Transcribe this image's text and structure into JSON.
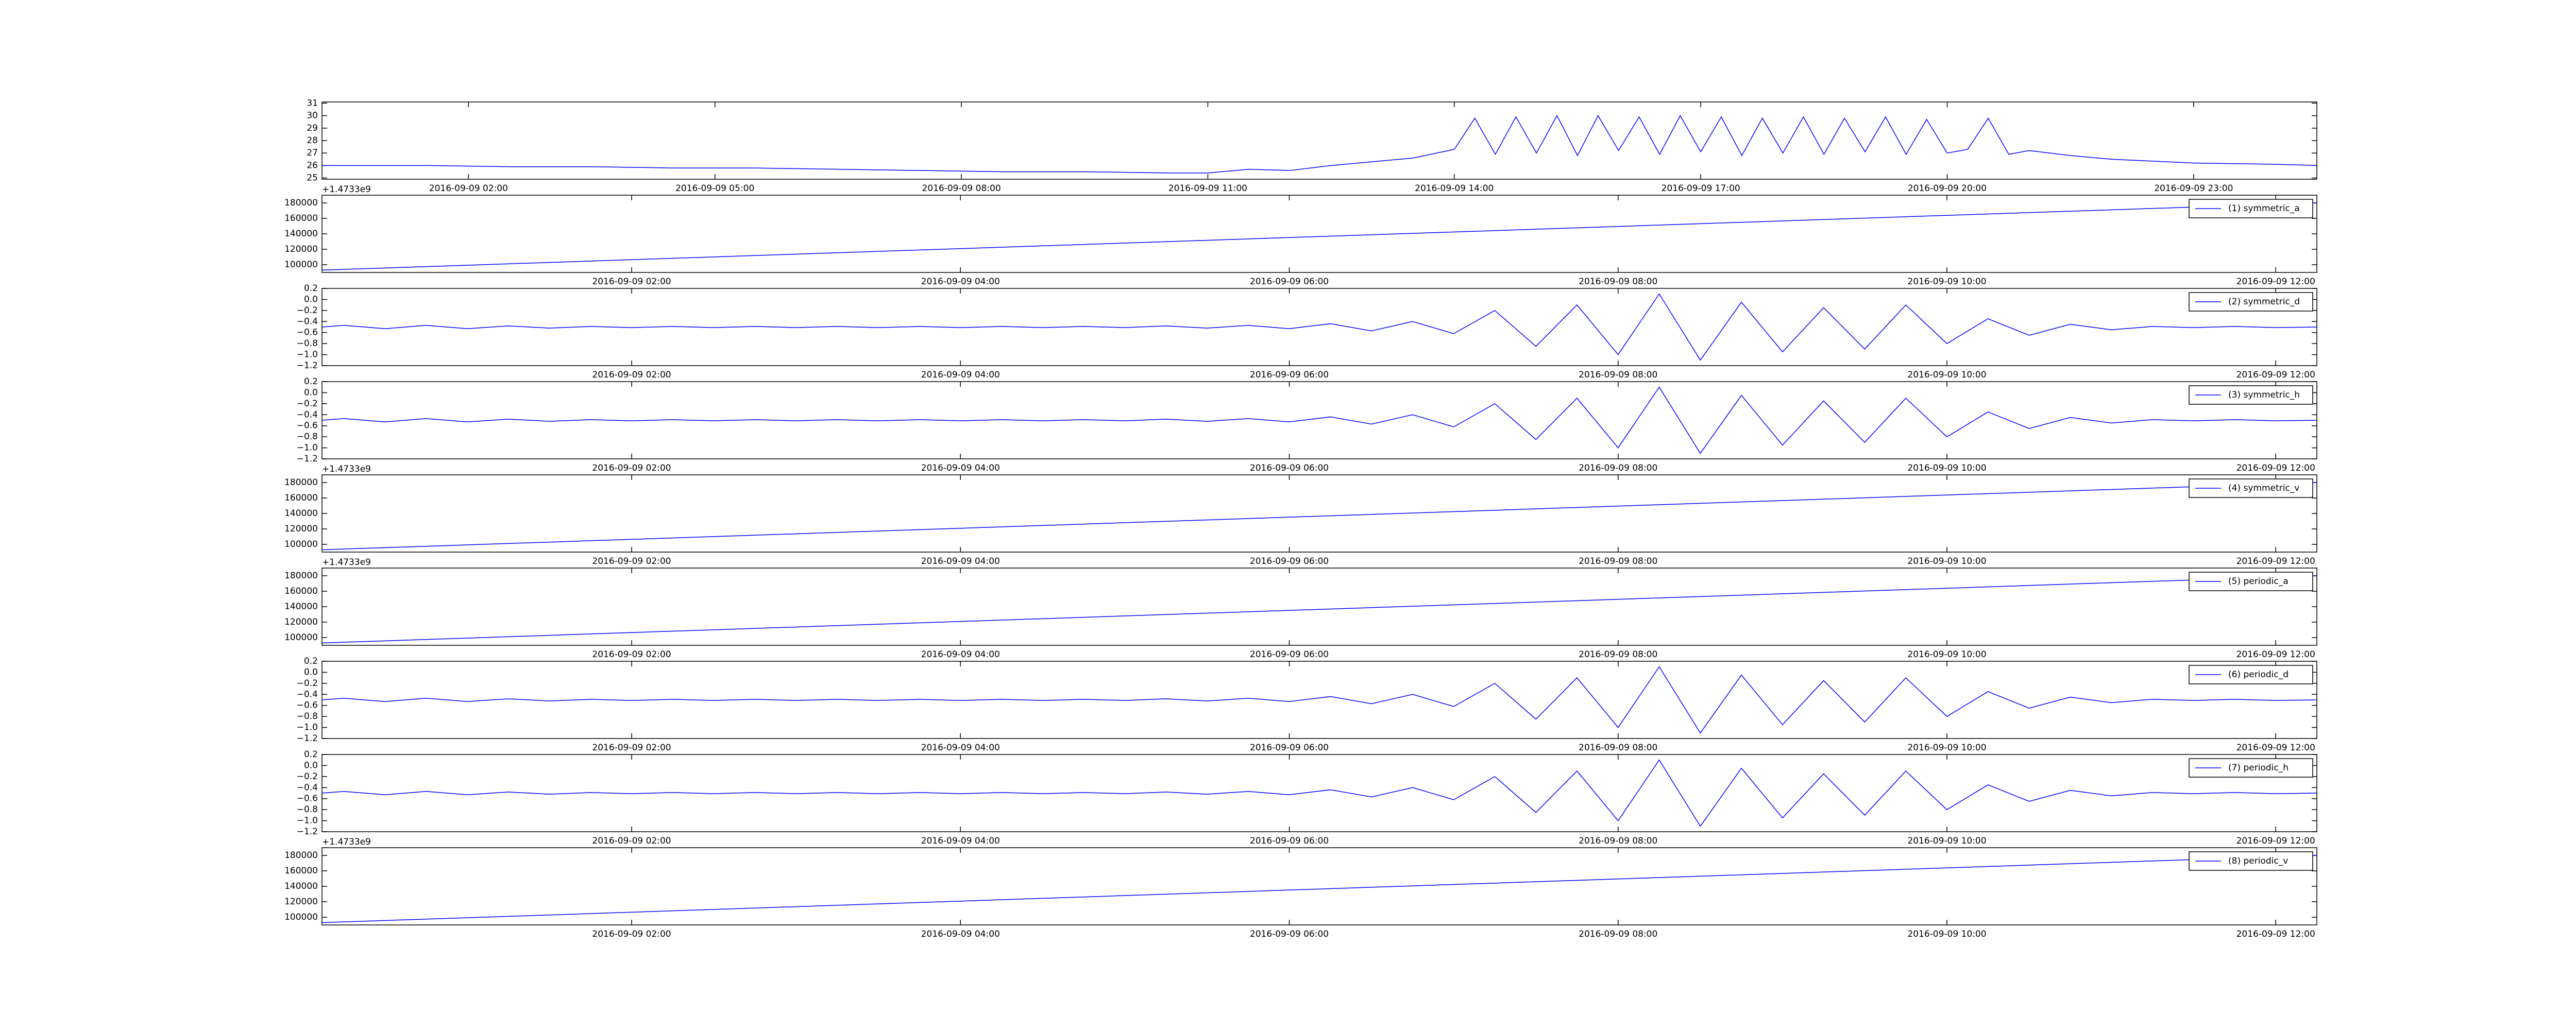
{
  "chart_data": [
    {
      "type": "line",
      "color": "#0000ff",
      "x": [
        "2016-09-09 00:13",
        "2016-09-09 01:30",
        "2016-09-09 02:30",
        "2016-09-09 03:30",
        "2016-09-09 04:30",
        "2016-09-09 05:30",
        "2016-09-09 06:30",
        "2016-09-09 07:30",
        "2016-09-09 08:30",
        "2016-09-09 09:30",
        "2016-09-09 10:30",
        "2016-09-09 11:00",
        "2016-09-09 11:30",
        "2016-09-09 12:00",
        "2016-09-09 12:30",
        "2016-09-09 13:00",
        "2016-09-09 13:30",
        "2016-09-09 14:00",
        "2016-09-09 14:15",
        "2016-09-09 14:30",
        "2016-09-09 14:45",
        "2016-09-09 15:00",
        "2016-09-09 15:15",
        "2016-09-09 15:30",
        "2016-09-09 15:45",
        "2016-09-09 16:00",
        "2016-09-09 16:15",
        "2016-09-09 16:30",
        "2016-09-09 16:45",
        "2016-09-09 17:00",
        "2016-09-09 17:15",
        "2016-09-09 17:30",
        "2016-09-09 17:45",
        "2016-09-09 18:00",
        "2016-09-09 18:15",
        "2016-09-09 18:30",
        "2016-09-09 18:45",
        "2016-09-09 19:00",
        "2016-09-09 19:15",
        "2016-09-09 19:30",
        "2016-09-09 19:45",
        "2016-09-09 20:00",
        "2016-09-09 20:15",
        "2016-09-09 20:30",
        "2016-09-09 20:45",
        "2016-09-09 21:00",
        "2016-09-09 21:30",
        "2016-09-09 22:00",
        "2016-09-09 23:00",
        "2016-09-10 00:00",
        "2016-09-10 00:30"
      ],
      "values": [
        26.0,
        26.0,
        25.9,
        25.9,
        25.8,
        25.8,
        25.7,
        25.6,
        25.5,
        25.5,
        25.4,
        25.4,
        25.7,
        25.6,
        26.0,
        26.3,
        26.6,
        27.3,
        29.8,
        26.9,
        29.9,
        27.0,
        30.0,
        26.8,
        30.0,
        27.2,
        29.9,
        26.9,
        30.0,
        27.1,
        29.9,
        26.8,
        29.8,
        27.0,
        29.9,
        26.9,
        29.8,
        27.1,
        29.9,
        26.9,
        29.7,
        27.0,
        27.3,
        29.8,
        26.9,
        27.2,
        26.8,
        26.5,
        26.2,
        26.1,
        26.0
      ],
      "xlim": [
        "2016-09-09 00:13",
        "2016-09-10 00:30"
      ],
      "xticks": [
        "2016-09-09 02:00",
        "2016-09-09 05:00",
        "2016-09-09 08:00",
        "2016-09-09 11:00",
        "2016-09-09 14:00",
        "2016-09-09 17:00",
        "2016-09-09 20:00",
        "2016-09-09 23:00"
      ],
      "ylim": [
        24.9,
        31.1
      ],
      "yticks": [
        25,
        26,
        27,
        28,
        29,
        30,
        31
      ]
    },
    {
      "type": "line",
      "y_offset_text": "+1.4733e9",
      "legend": "upper right",
      "x": [
        "2016-09-09 00:07",
        "2016-09-09 12:15"
      ],
      "series": [
        {
          "name": "(1) symmetric_a",
          "color": "#0000ff",
          "values": [
            93000,
            180000
          ]
        }
      ],
      "xlim": [
        "2016-09-09 00:07",
        "2016-09-09 12:15"
      ],
      "xticks": [
        "2016-09-09 02:00",
        "2016-09-09 04:00",
        "2016-09-09 06:00",
        "2016-09-09 08:00",
        "2016-09-09 10:00",
        "2016-09-09 12:00"
      ],
      "ylim": [
        90000,
        190000
      ],
      "yticks": [
        100000,
        120000,
        140000,
        160000,
        180000
      ]
    },
    {
      "type": "line",
      "legend": "upper right",
      "x": [
        "2016-09-09 00:07",
        "2016-09-09 00:15",
        "2016-09-09 00:30",
        "2016-09-09 00:45",
        "2016-09-09 01:00",
        "2016-09-09 01:15",
        "2016-09-09 01:30",
        "2016-09-09 01:45",
        "2016-09-09 02:00",
        "2016-09-09 02:15",
        "2016-09-09 02:30",
        "2016-09-09 02:45",
        "2016-09-09 03:00",
        "2016-09-09 03:15",
        "2016-09-09 03:30",
        "2016-09-09 03:45",
        "2016-09-09 04:00",
        "2016-09-09 04:15",
        "2016-09-09 04:30",
        "2016-09-09 04:45",
        "2016-09-09 05:00",
        "2016-09-09 05:15",
        "2016-09-09 05:30",
        "2016-09-09 05:45",
        "2016-09-09 06:00",
        "2016-09-09 06:15",
        "2016-09-09 06:30",
        "2016-09-09 06:45",
        "2016-09-09 07:00",
        "2016-09-09 07:15",
        "2016-09-09 07:30",
        "2016-09-09 07:45",
        "2016-09-09 08:00",
        "2016-09-09 08:15",
        "2016-09-09 08:30",
        "2016-09-09 08:45",
        "2016-09-09 09:00",
        "2016-09-09 09:15",
        "2016-09-09 09:30",
        "2016-09-09 09:45",
        "2016-09-09 10:00",
        "2016-09-09 10:15",
        "2016-09-09 10:30",
        "2016-09-09 10:45",
        "2016-09-09 11:00",
        "2016-09-09 11:15",
        "2016-09-09 11:30",
        "2016-09-09 11:45",
        "2016-09-09 12:00",
        "2016-09-09 12:15"
      ],
      "series": [
        {
          "name": "(2) symmetric_d",
          "color": "#0000ff",
          "values": [
            -0.5,
            -0.47,
            -0.53,
            -0.47,
            -0.53,
            -0.48,
            -0.52,
            -0.49,
            -0.51,
            -0.49,
            -0.51,
            -0.49,
            -0.51,
            -0.49,
            -0.51,
            -0.49,
            -0.51,
            -0.49,
            -0.51,
            -0.49,
            -0.51,
            -0.48,
            -0.52,
            -0.47,
            -0.53,
            -0.44,
            -0.57,
            -0.4,
            -0.62,
            -0.2,
            -0.85,
            -0.1,
            -1.0,
            0.1,
            -1.1,
            -0.05,
            -0.95,
            -0.15,
            -0.9,
            -0.1,
            -0.8,
            -0.35,
            -0.65,
            -0.45,
            -0.55,
            -0.49,
            -0.51,
            -0.49,
            -0.51,
            -0.5
          ]
        }
      ],
      "xlim": [
        "2016-09-09 00:07",
        "2016-09-09 12:15"
      ],
      "xticks": [
        "2016-09-09 02:00",
        "2016-09-09 04:00",
        "2016-09-09 06:00",
        "2016-09-09 08:00",
        "2016-09-09 10:00",
        "2016-09-09 12:00"
      ],
      "ylim": [
        -1.2,
        0.2
      ],
      "yticks": [
        {
          "value": -1.2,
          "label": "−1.2"
        },
        {
          "value": -1.0,
          "label": "−1.0"
        },
        {
          "value": -0.8,
          "label": "−0.8"
        },
        {
          "value": -0.6,
          "label": "−0.6"
        },
        {
          "value": -0.4,
          "label": "−0.4"
        },
        {
          "value": -0.2,
          "label": "−0.2"
        },
        {
          "value": 0,
          "label": "0.0"
        },
        0.2
      ]
    },
    {
      "type": "line",
      "legend": "upper right",
      "x": [
        "2016-09-09 00:07",
        "2016-09-09 00:15",
        "2016-09-09 00:30",
        "2016-09-09 00:45",
        "2016-09-09 01:00",
        "2016-09-09 01:15",
        "2016-09-09 01:30",
        "2016-09-09 01:45",
        "2016-09-09 02:00",
        "2016-09-09 02:15",
        "2016-09-09 02:30",
        "2016-09-09 02:45",
        "2016-09-09 03:00",
        "2016-09-09 03:15",
        "2016-09-09 03:30",
        "2016-09-09 03:45",
        "2016-09-09 04:00",
        "2016-09-09 04:15",
        "2016-09-09 04:30",
        "2016-09-09 04:45",
        "2016-09-09 05:00",
        "2016-09-09 05:15",
        "2016-09-09 05:30",
        "2016-09-09 05:45",
        "2016-09-09 06:00",
        "2016-09-09 06:15",
        "2016-09-09 06:30",
        "2016-09-09 06:45",
        "2016-09-09 07:00",
        "2016-09-09 07:15",
        "2016-09-09 07:30",
        "2016-09-09 07:45",
        "2016-09-09 08:00",
        "2016-09-09 08:15",
        "2016-09-09 08:30",
        "2016-09-09 08:45",
        "2016-09-09 09:00",
        "2016-09-09 09:15",
        "2016-09-09 09:30",
        "2016-09-09 09:45",
        "2016-09-09 10:00",
        "2016-09-09 10:15",
        "2016-09-09 10:30",
        "2016-09-09 10:45",
        "2016-09-09 11:00",
        "2016-09-09 11:15",
        "2016-09-09 11:30",
        "2016-09-09 11:45",
        "2016-09-09 12:00",
        "2016-09-09 12:15"
      ],
      "series": [
        {
          "name": "(3) symmetric_h",
          "color": "#0000ff",
          "values": [
            -0.5,
            -0.47,
            -0.53,
            -0.47,
            -0.53,
            -0.48,
            -0.52,
            -0.49,
            -0.51,
            -0.49,
            -0.51,
            -0.49,
            -0.51,
            -0.49,
            -0.51,
            -0.49,
            -0.51,
            -0.49,
            -0.51,
            -0.49,
            -0.51,
            -0.48,
            -0.52,
            -0.47,
            -0.53,
            -0.44,
            -0.57,
            -0.4,
            -0.62,
            -0.2,
            -0.85,
            -0.1,
            -1.0,
            0.1,
            -1.1,
            -0.05,
            -0.95,
            -0.15,
            -0.9,
            -0.1,
            -0.8,
            -0.35,
            -0.65,
            -0.45,
            -0.55,
            -0.49,
            -0.51,
            -0.49,
            -0.51,
            -0.5
          ]
        }
      ],
      "xlim": [
        "2016-09-09 00:07",
        "2016-09-09 12:15"
      ],
      "xticks": [
        "2016-09-09 02:00",
        "2016-09-09 04:00",
        "2016-09-09 06:00",
        "2016-09-09 08:00",
        "2016-09-09 10:00",
        "2016-09-09 12:00"
      ],
      "ylim": [
        -1.2,
        0.2
      ],
      "yticks": [
        {
          "value": -1.2,
          "label": "−1.2"
        },
        {
          "value": -1.0,
          "label": "−1.0"
        },
        {
          "value": -0.8,
          "label": "−0.8"
        },
        {
          "value": -0.6,
          "label": "−0.6"
        },
        {
          "value": -0.4,
          "label": "−0.4"
        },
        {
          "value": -0.2,
          "label": "−0.2"
        },
        {
          "value": 0,
          "label": "0.0"
        },
        0.2
      ]
    },
    {
      "type": "line",
      "y_offset_text": "+1.4733e9",
      "legend": "upper right",
      "x": [
        "2016-09-09 00:07",
        "2016-09-09 12:15"
      ],
      "series": [
        {
          "name": "(4) symmetric_v",
          "color": "#0000ff",
          "values": [
            93000,
            180000
          ]
        }
      ],
      "xlim": [
        "2016-09-09 00:07",
        "2016-09-09 12:15"
      ],
      "xticks": [
        "2016-09-09 02:00",
        "2016-09-09 04:00",
        "2016-09-09 06:00",
        "2016-09-09 08:00",
        "2016-09-09 10:00",
        "2016-09-09 12:00"
      ],
      "ylim": [
        90000,
        190000
      ],
      "yticks": [
        100000,
        120000,
        140000,
        160000,
        180000
      ]
    },
    {
      "type": "line",
      "y_offset_text": "+1.4733e9",
      "legend": "upper right",
      "x": [
        "2016-09-09 00:07",
        "2016-09-09 12:15"
      ],
      "series": [
        {
          "name": "(5) periodic_a",
          "color": "#0000ff",
          "values": [
            93000,
            180000
          ]
        }
      ],
      "xlim": [
        "2016-09-09 00:07",
        "2016-09-09 12:15"
      ],
      "xticks": [
        "2016-09-09 02:00",
        "2016-09-09 04:00",
        "2016-09-09 06:00",
        "2016-09-09 08:00",
        "2016-09-09 10:00",
        "2016-09-09 12:00"
      ],
      "ylim": [
        90000,
        190000
      ],
      "yticks": [
        100000,
        120000,
        140000,
        160000,
        180000
      ]
    },
    {
      "type": "line",
      "legend": "upper right",
      "x": [
        "2016-09-09 00:07",
        "2016-09-09 00:15",
        "2016-09-09 00:30",
        "2016-09-09 00:45",
        "2016-09-09 01:00",
        "2016-09-09 01:15",
        "2016-09-09 01:30",
        "2016-09-09 01:45",
        "2016-09-09 02:00",
        "2016-09-09 02:15",
        "2016-09-09 02:30",
        "2016-09-09 02:45",
        "2016-09-09 03:00",
        "2016-09-09 03:15",
        "2016-09-09 03:30",
        "2016-09-09 03:45",
        "2016-09-09 04:00",
        "2016-09-09 04:15",
        "2016-09-09 04:30",
        "2016-09-09 04:45",
        "2016-09-09 05:00",
        "2016-09-09 05:15",
        "2016-09-09 05:30",
        "2016-09-09 05:45",
        "2016-09-09 06:00",
        "2016-09-09 06:15",
        "2016-09-09 06:30",
        "2016-09-09 06:45",
        "2016-09-09 07:00",
        "2016-09-09 07:15",
        "2016-09-09 07:30",
        "2016-09-09 07:45",
        "2016-09-09 08:00",
        "2016-09-09 08:15",
        "2016-09-09 08:30",
        "2016-09-09 08:45",
        "2016-09-09 09:00",
        "2016-09-09 09:15",
        "2016-09-09 09:30",
        "2016-09-09 09:45",
        "2016-09-09 10:00",
        "2016-09-09 10:15",
        "2016-09-09 10:30",
        "2016-09-09 10:45",
        "2016-09-09 11:00",
        "2016-09-09 11:15",
        "2016-09-09 11:30",
        "2016-09-09 11:45",
        "2016-09-09 12:00",
        "2016-09-09 12:15"
      ],
      "series": [
        {
          "name": "(6) periodic_d",
          "color": "#0000ff",
          "values": [
            -0.5,
            -0.47,
            -0.53,
            -0.47,
            -0.53,
            -0.48,
            -0.52,
            -0.49,
            -0.51,
            -0.49,
            -0.51,
            -0.49,
            -0.51,
            -0.49,
            -0.51,
            -0.49,
            -0.51,
            -0.49,
            -0.51,
            -0.49,
            -0.51,
            -0.48,
            -0.52,
            -0.47,
            -0.53,
            -0.44,
            -0.57,
            -0.4,
            -0.62,
            -0.2,
            -0.85,
            -0.1,
            -1.0,
            0.1,
            -1.1,
            -0.05,
            -0.95,
            -0.15,
            -0.9,
            -0.1,
            -0.8,
            -0.35,
            -0.65,
            -0.45,
            -0.55,
            -0.49,
            -0.51,
            -0.49,
            -0.51,
            -0.5
          ]
        }
      ],
      "xlim": [
        "2016-09-09 00:07",
        "2016-09-09 12:15"
      ],
      "xticks": [
        "2016-09-09 02:00",
        "2016-09-09 04:00",
        "2016-09-09 06:00",
        "2016-09-09 08:00",
        "2016-09-09 10:00",
        "2016-09-09 12:00"
      ],
      "ylim": [
        -1.2,
        0.2
      ],
      "yticks": [
        {
          "value": -1.2,
          "label": "−1.2"
        },
        {
          "value": -1.0,
          "label": "−1.0"
        },
        {
          "value": -0.8,
          "label": "−0.8"
        },
        {
          "value": -0.6,
          "label": "−0.6"
        },
        {
          "value": -0.4,
          "label": "−0.4"
        },
        {
          "value": -0.2,
          "label": "−0.2"
        },
        {
          "value": 0,
          "label": "0.0"
        },
        0.2
      ]
    },
    {
      "type": "line",
      "legend": "upper right",
      "x": [
        "2016-09-09 00:07",
        "2016-09-09 00:15",
        "2016-09-09 00:30",
        "2016-09-09 00:45",
        "2016-09-09 01:00",
        "2016-09-09 01:15",
        "2016-09-09 01:30",
        "2016-09-09 01:45",
        "2016-09-09 02:00",
        "2016-09-09 02:15",
        "2016-09-09 02:30",
        "2016-09-09 02:45",
        "2016-09-09 03:00",
        "2016-09-09 03:15",
        "2016-09-09 03:30",
        "2016-09-09 03:45",
        "2016-09-09 04:00",
        "2016-09-09 04:15",
        "2016-09-09 04:30",
        "2016-09-09 04:45",
        "2016-09-09 05:00",
        "2016-09-09 05:15",
        "2016-09-09 05:30",
        "2016-09-09 05:45",
        "2016-09-09 06:00",
        "2016-09-09 06:15",
        "2016-09-09 06:30",
        "2016-09-09 06:45",
        "2016-09-09 07:00",
        "2016-09-09 07:15",
        "2016-09-09 07:30",
        "2016-09-09 07:45",
        "2016-09-09 08:00",
        "2016-09-09 08:15",
        "2016-09-09 08:30",
        "2016-09-09 08:45",
        "2016-09-09 09:00",
        "2016-09-09 09:15",
        "2016-09-09 09:30",
        "2016-09-09 09:45",
        "2016-09-09 10:00",
        "2016-09-09 10:15",
        "2016-09-09 10:30",
        "2016-09-09 10:45",
        "2016-09-09 11:00",
        "2016-09-09 11:15",
        "2016-09-09 11:30",
        "2016-09-09 11:45",
        "2016-09-09 12:00",
        "2016-09-09 12:15"
      ],
      "series": [
        {
          "name": "(7) periodic_h",
          "color": "#0000ff",
          "values": [
            -0.5,
            -0.47,
            -0.53,
            -0.47,
            -0.53,
            -0.48,
            -0.52,
            -0.49,
            -0.51,
            -0.49,
            -0.51,
            -0.49,
            -0.51,
            -0.49,
            -0.51,
            -0.49,
            -0.51,
            -0.49,
            -0.51,
            -0.49,
            -0.51,
            -0.48,
            -0.52,
            -0.47,
            -0.53,
            -0.44,
            -0.57,
            -0.4,
            -0.62,
            -0.2,
            -0.85,
            -0.1,
            -1.0,
            0.1,
            -1.1,
            -0.05,
            -0.95,
            -0.15,
            -0.9,
            -0.1,
            -0.8,
            -0.35,
            -0.65,
            -0.45,
            -0.55,
            -0.49,
            -0.51,
            -0.49,
            -0.51,
            -0.5
          ]
        }
      ],
      "xlim": [
        "2016-09-09 00:07",
        "2016-09-09 12:15"
      ],
      "xticks": [
        "2016-09-09 02:00",
        "2016-09-09 04:00",
        "2016-09-09 06:00",
        "2016-09-09 08:00",
        "2016-09-09 10:00",
        "2016-09-09 12:00"
      ],
      "ylim": [
        -1.2,
        0.2
      ],
      "yticks": [
        {
          "value": -1.2,
          "label": "−1.2"
        },
        {
          "value": -1.0,
          "label": "−1.0"
        },
        {
          "value": -0.8,
          "label": "−0.8"
        },
        {
          "value": -0.6,
          "label": "−0.6"
        },
        {
          "value": -0.4,
          "label": "−0.4"
        },
        {
          "value": -0.2,
          "label": "−0.2"
        },
        {
          "value": 0,
          "label": "0.0"
        },
        0.2
      ]
    },
    {
      "type": "line",
      "y_offset_text": "+1.4733e9",
      "legend": "upper right",
      "x": [
        "2016-09-09 00:07",
        "2016-09-09 12:15"
      ],
      "series": [
        {
          "name": "(8) periodic_v",
          "color": "#0000ff",
          "values": [
            93000,
            180000
          ]
        }
      ],
      "xlim": [
        "2016-09-09 00:07",
        "2016-09-09 12:15"
      ],
      "xticks": [
        "2016-09-09 02:00",
        "2016-09-09 04:00",
        "2016-09-09 06:00",
        "2016-09-09 08:00",
        "2016-09-09 10:00",
        "2016-09-09 12:00"
      ],
      "ylim": [
        90000,
        190000
      ],
      "yticks": [
        100000,
        120000,
        140000,
        160000,
        180000
      ]
    }
  ]
}
